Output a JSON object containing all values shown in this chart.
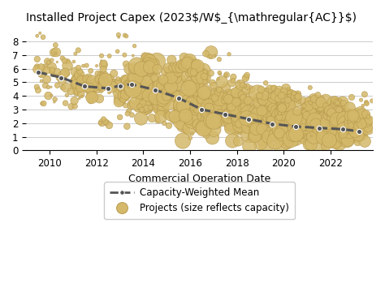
{
  "title": "Installed Project Capex (2023$/W_AC)",
  "xlabel": "Commercial Operation Date",
  "ylabel": "",
  "ylim": [
    0,
    9
  ],
  "xlim": [
    2009.0,
    2023.8
  ],
  "yticks": [
    0,
    1,
    2,
    3,
    4,
    5,
    6,
    7,
    8
  ],
  "xticks": [
    2010,
    2012,
    2014,
    2016,
    2018,
    2020,
    2022
  ],
  "mean_line_x": [
    2009.5,
    2010.5,
    2011.5,
    2012.5,
    2013.0,
    2013.5,
    2014.5,
    2015.5,
    2016.5,
    2017.5,
    2018.5,
    2019.5,
    2020.5,
    2021.5,
    2022.5,
    2023.2
  ],
  "mean_line_y": [
    5.75,
    5.35,
    4.7,
    4.55,
    4.75,
    4.85,
    4.45,
    3.85,
    3.0,
    2.65,
    2.3,
    1.95,
    1.75,
    1.65,
    1.55,
    1.4
  ],
  "bubble_color": "#D4B96A",
  "bubble_edgecolor": "#B89A4E",
  "mean_line_color": "#555555",
  "background_color": "#FFFFFF",
  "grid_color": "#CCCCCC",
  "title_fontsize": 10,
  "axis_label_fontsize": 9,
  "tick_fontsize": 8.5,
  "legend_fontsize": 8.5
}
